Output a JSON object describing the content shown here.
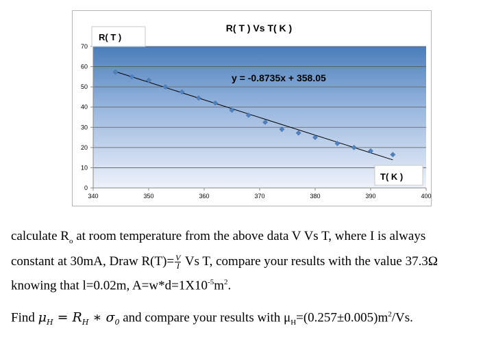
{
  "chart_data": {
    "type": "scatter",
    "title": "R( T ) Vs T( K )",
    "ylabel": "R( T )",
    "xlabel": "T( K )",
    "xlim": [
      340,
      400
    ],
    "ylim": [
      0,
      70
    ],
    "x_ticks": [
      340,
      350,
      360,
      370,
      380,
      390,
      400
    ],
    "y_ticks": [
      0,
      10,
      20,
      30,
      40,
      50,
      60,
      70
    ],
    "grid": true,
    "series": [
      {
        "x": [
          344,
          347,
          350,
          353,
          356,
          359,
          362,
          365,
          368,
          371,
          374,
          377,
          380,
          384,
          387,
          390,
          394
        ],
        "y": [
          57.3,
          55.0,
          53.3,
          50.0,
          47.5,
          44.5,
          42.0,
          38.5,
          36.0,
          32.5,
          29.0,
          27.2,
          25.0,
          22.0,
          20.0,
          18.3,
          16.5
        ]
      }
    ],
    "trendline": {
      "slope": -0.8735,
      "intercept": 358.05,
      "x_range": [
        344,
        394
      ],
      "equation_label": "y = -0.8735x + 358.05"
    },
    "colors": {
      "plot_bg_top": "#4a7ebb",
      "plot_bg_bottom": "#e8eef8",
      "marker": "#4f81bd",
      "trendline": "#000000"
    }
  },
  "text": {
    "p1_a": "calculate R",
    "p1_sub": "o",
    "p1_b": " at room temperature from the above data V Vs T, where I is always",
    "p2_a": "constant at 30mA, Draw R(T)=",
    "p2_frac_num": "V",
    "p2_frac_den": "I",
    "p2_b": " Vs T, compare your results with the value 37.3Ω",
    "p3_a": "knowing that l=0.02m, A=w*d=1X10",
    "p3_sup1": "-5",
    "p3_b": "m",
    "p3_sup2": "2",
    "p3_c": ".",
    "p4_a": "Find ",
    "p4_math": "μ",
    "p4_math_sub": "H",
    "p4_eq": " = R",
    "p4_eq_sub": "H",
    "p4_eq2": " ∗ σ",
    "p4_eq2_sub": "0",
    "p4_b": " and compare your results with μ",
    "p4_b_sub": "H",
    "p4_c": "=(0.257±0.005)m",
    "p4_sup": "2",
    "p4_d": "/Vs."
  }
}
